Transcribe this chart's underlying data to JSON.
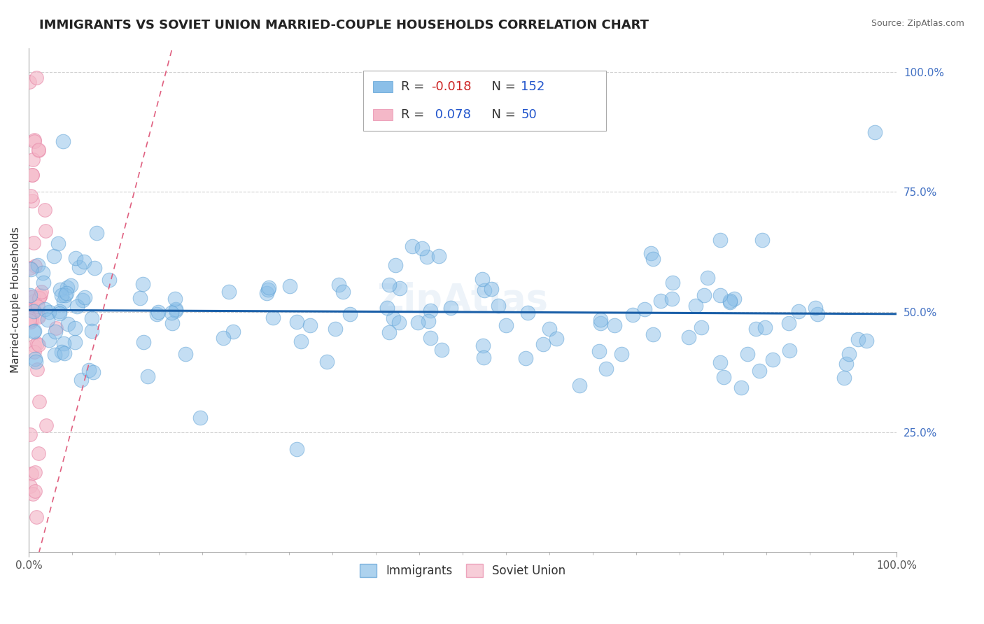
{
  "title": "IMMIGRANTS VS SOVIET UNION MARRIED-COUPLE HOUSEHOLDS CORRELATION CHART",
  "source_text": "Source: ZipAtlas.com",
  "ylabel": "Married-couple Households",
  "immigrants_color": "#8bbfe8",
  "immigrants_edge_color": "#5a9fd4",
  "soviet_color": "#f4b8c8",
  "soviet_edge_color": "#e88aaa",
  "trend_immigrants_color": "#1a5fa8",
  "trend_soviet_color": "#e06080",
  "background_color": "#ffffff",
  "grid_color": "#cccccc",
  "R_immigrants": -0.018,
  "N_immigrants": 152,
  "R_soviet": 0.078,
  "N_soviet": 50,
  "xlim": [
    0.0,
    1.0
  ],
  "ylim": [
    0.0,
    1.05
  ],
  "title_fontsize": 13,
  "axis_label_fontsize": 11,
  "legend_R_color_neg": "#cc2222",
  "legend_R_color_pos": "#2255cc",
  "legend_N_color": "#2255cc",
  "ytick_color": "#4472c4",
  "source_color": "#666666"
}
